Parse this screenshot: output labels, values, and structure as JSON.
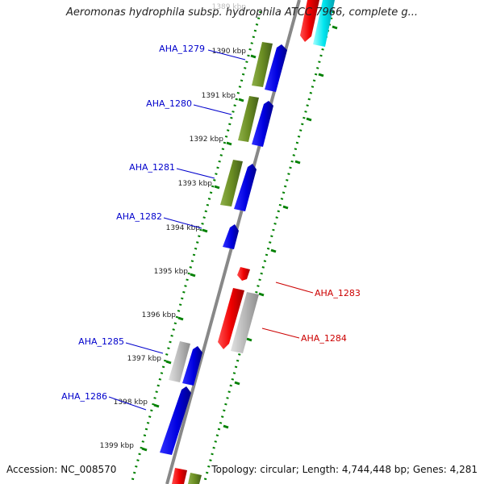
{
  "title": "Aeromonas hydrophila subsp. hydrophila ATCC 7966, complete g...",
  "footer": {
    "accession": "Accession: NC_008570",
    "summary": "Topology: circular; Length: 4,744,448 bp; Genes: 4,281"
  },
  "colors": {
    "backbone": "#8a8a8a",
    "tick": "#008000",
    "forward_cds": "#0000ee",
    "reverse_cds": "#ee0000",
    "forward_feature": "#6b8e23",
    "pseudo_feature": "#b8b8b8",
    "highlight": "#00e5ee",
    "forward_label": "#0000cc",
    "reverse_label": "#cc0000"
  },
  "ruler": {
    "unit": "kbp",
    "labels": [
      "1389 kbp",
      "1390 kbp",
      "1391 kbp",
      "1392 kbp",
      "1393 kbp",
      "1394 kbp",
      "1395 kbp",
      "1396 kbp",
      "1397 kbp",
      "1398 kbp",
      "1399 kbp"
    ]
  },
  "gene_labels": [
    {
      "text": "AHA_1279",
      "strand": "forward"
    },
    {
      "text": "AHA_1280",
      "strand": "forward"
    },
    {
      "text": "AHA_1281",
      "strand": "forward"
    },
    {
      "text": "AHA_1282",
      "strand": "forward"
    },
    {
      "text": "AHA_1283",
      "strand": "reverse"
    },
    {
      "text": "AHA_1284",
      "strand": "reverse"
    },
    {
      "text": "AHA_1285",
      "strand": "forward"
    },
    {
      "text": "AHA_1286",
      "strand": "forward"
    }
  ]
}
